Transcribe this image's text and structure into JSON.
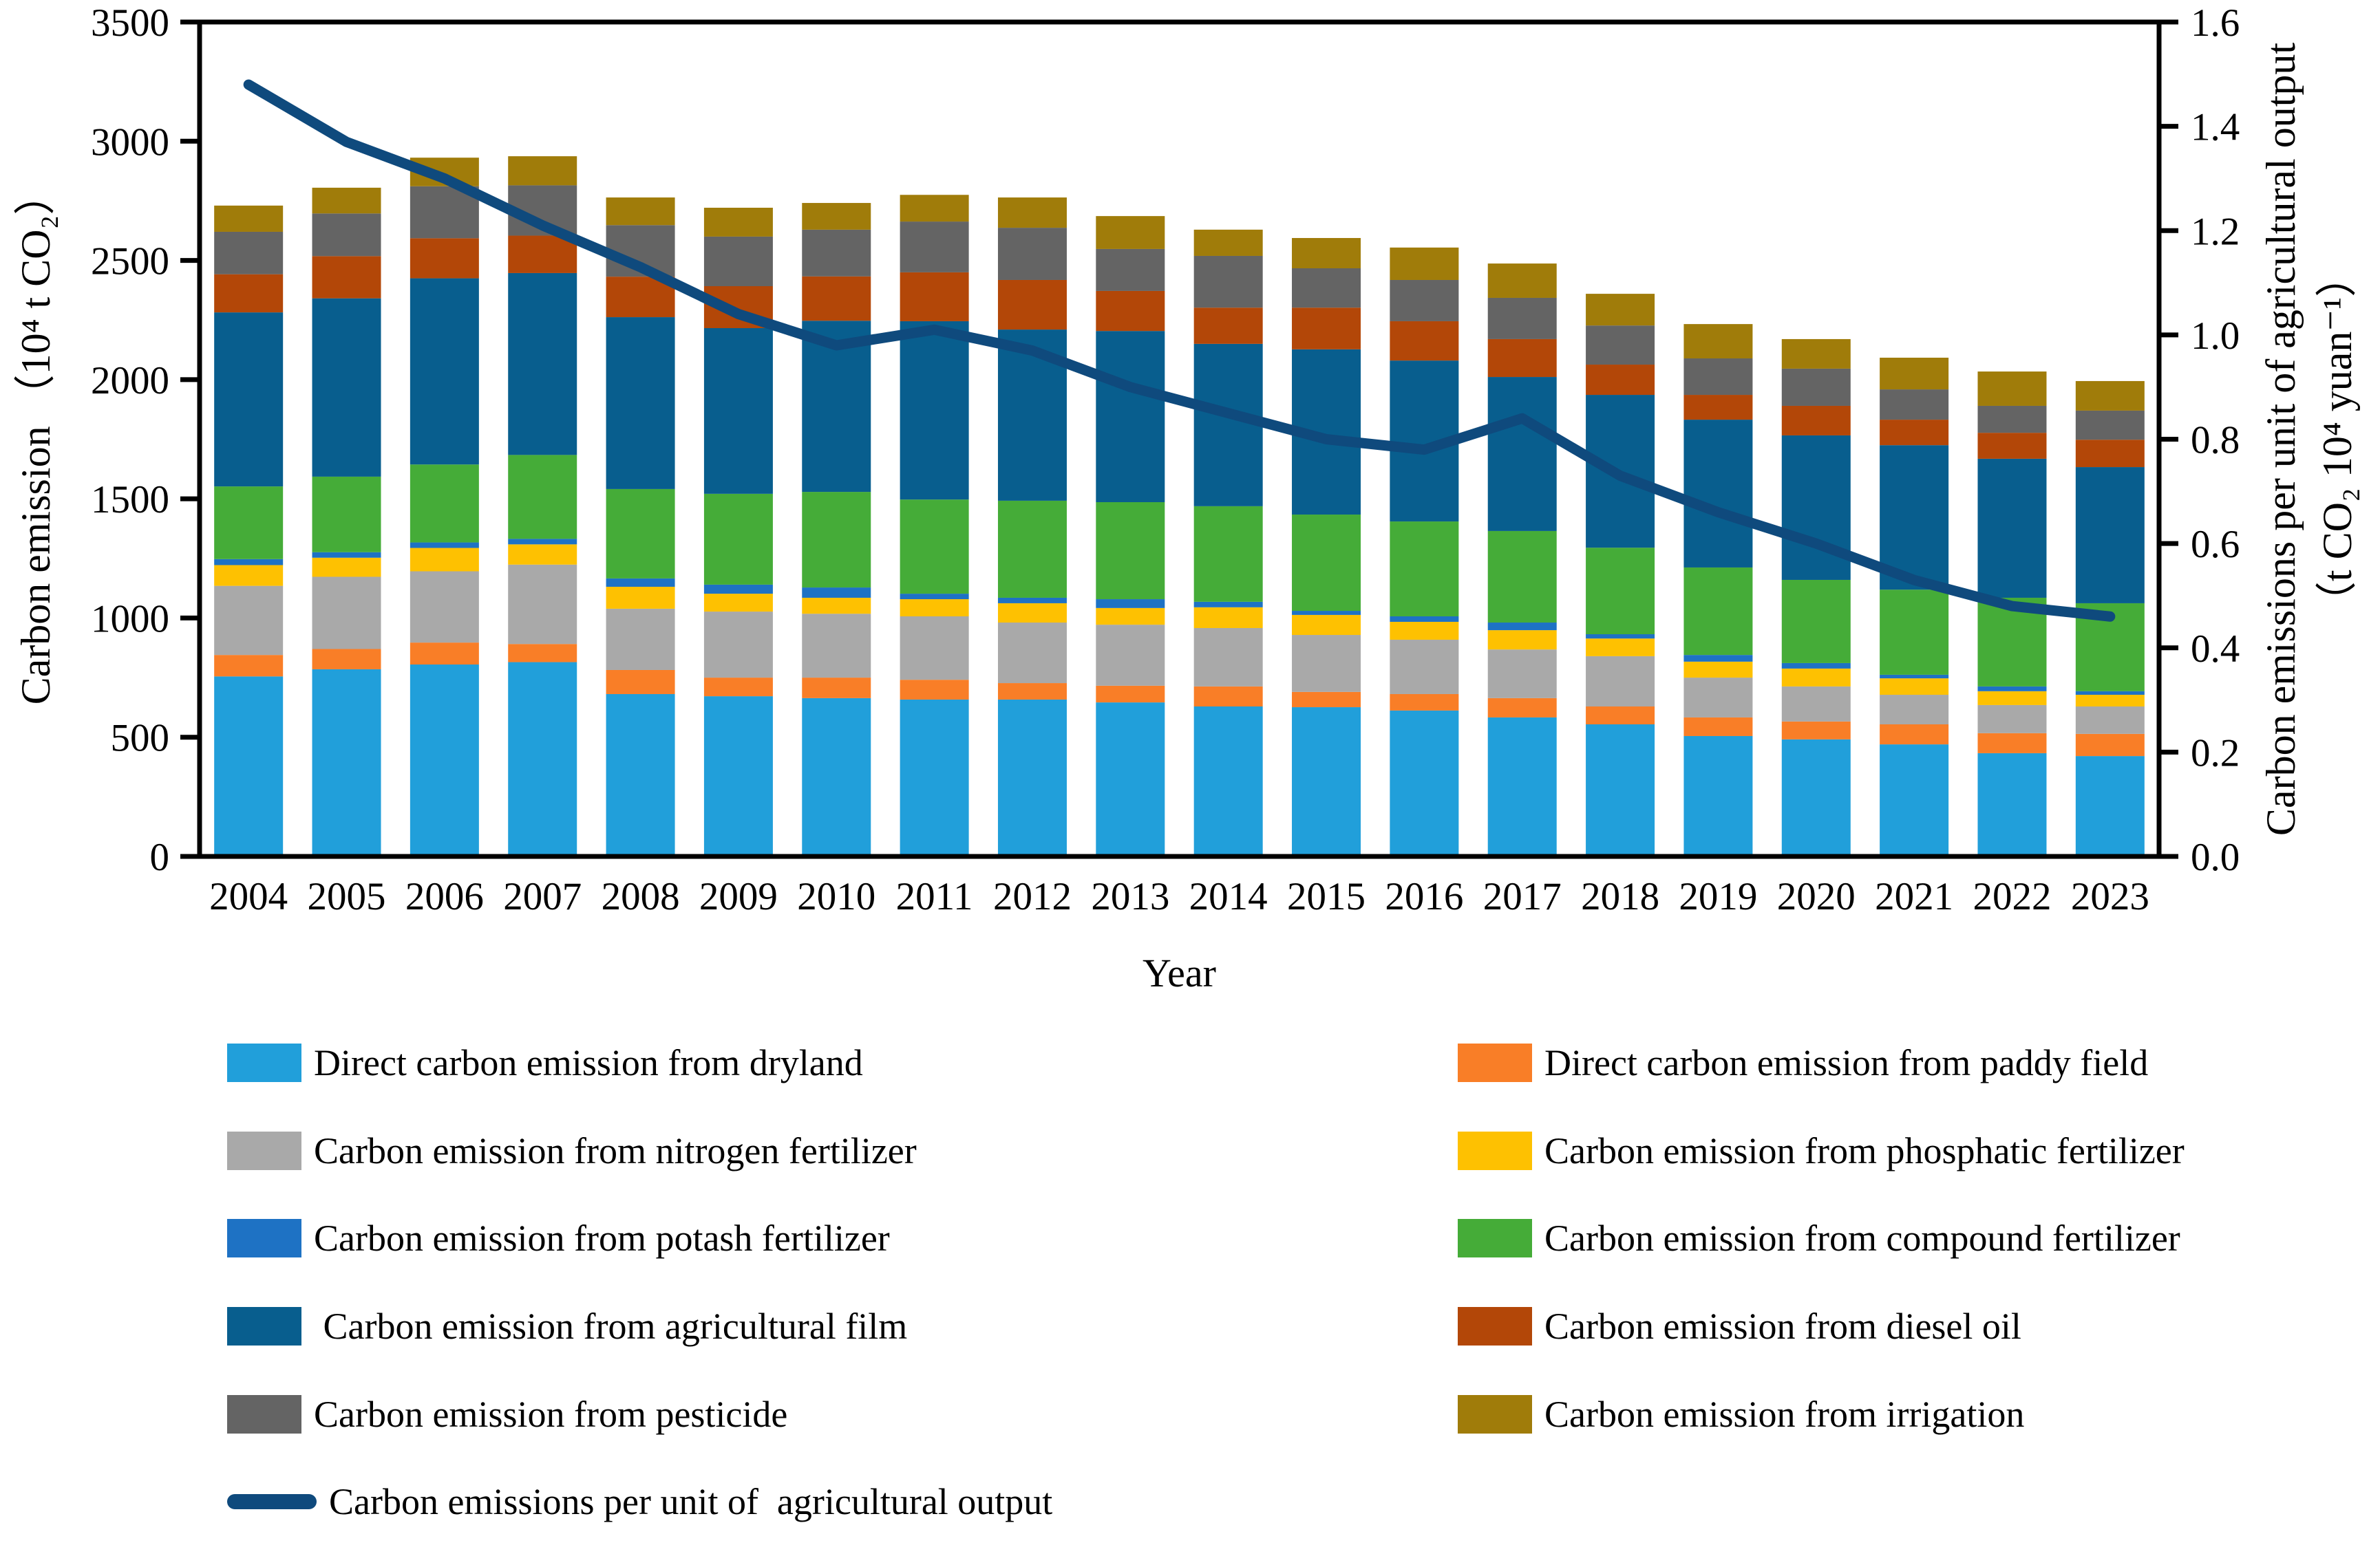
{
  "figure": {
    "left_axis": {
      "title": "Carbon emission （10⁴ t CO₂）",
      "ticks": [
        0,
        500,
        1000,
        1500,
        2000,
        2500,
        3000,
        3500
      ]
    },
    "right_axis": {
      "title_main": "Carbon emissions per unit of agricultural output",
      "title_unit": "（t CO₂ 10⁴ yuan⁻¹）",
      "ticks": [
        "0.0",
        "0.2",
        "0.4",
        "0.6",
        "0.8",
        "1.0",
        "1.2",
        "1.4",
        "1.6"
      ]
    },
    "x_axis": {
      "title": "Year"
    }
  },
  "chart_data": {
    "type": "stacked-bar+line",
    "title": "",
    "xlabel": "Year",
    "ylabel_left": "Carbon emission （10⁴ t CO₂）",
    "ylabel_right": "Carbon emissions per unit of agricultural output （t CO₂ 10⁴ yuan⁻¹）",
    "left_ylim": [
      0,
      3500
    ],
    "right_ylim": [
      0,
      1.6
    ],
    "grid": false,
    "legend_position": "bottom",
    "categories": [
      "2004",
      "2005",
      "2006",
      "2007",
      "2008",
      "2009",
      "2010",
      "2011",
      "2012",
      "2013",
      "2014",
      "2015",
      "2016",
      "2017",
      "2018",
      "2019",
      "2020",
      "2021",
      "2022",
      "2023"
    ],
    "series": [
      {
        "id": "dryland",
        "name": "Direct carbon emission from dryland",
        "color": "#219FDA",
        "values": [
          755,
          785,
          805,
          815,
          681,
          672,
          664,
          658,
          658,
          646,
          629,
          626,
          612,
          583,
          554,
          505,
          491,
          470,
          433,
          421
        ]
      },
      {
        "id": "paddy-field",
        "name": "Direct carbon emission from paddy field",
        "color": "#F97E27",
        "values": [
          90,
          85,
          92,
          76,
          101,
          78,
          86,
          83,
          69,
          70,
          84,
          64,
          69,
          81,
          75,
          78,
          75,
          84,
          84,
          93
        ]
      },
      {
        "id": "nitrogen-fertilizer",
        "name": "Carbon emission from nitrogen fertilizer",
        "color": "#A9A9A9",
        "values": [
          290,
          303,
          299,
          333,
          257,
          277,
          268,
          266,
          254,
          256,
          245,
          239,
          228,
          204,
          211,
          167,
          147,
          124,
          118,
          115
        ]
      },
      {
        "id": "phosphatic-fertilizer",
        "name": "Carbon emission from phosphatic fertilizer",
        "color": "#FEC101",
        "values": [
          87,
          80,
          98,
          85,
          92,
          75,
          67,
          72,
          81,
          70,
          87,
          84,
          75,
          81,
          74,
          67,
          75,
          69,
          58,
          49
        ]
      },
      {
        "id": "potash-fertilizer",
        "name": "Carbon emission from potash fertilizer",
        "color": "#1E72C4",
        "values": [
          25,
          23,
          23,
          23,
          35,
          38,
          43,
          23,
          23,
          37,
          23,
          17,
          23,
          32,
          18,
          28,
          23,
          15,
          20,
          15
        ]
      },
      {
        "id": "compound-fertilizer",
        "name": "Carbon emission from compound fertilizer",
        "color": "#45AC38",
        "values": [
          305,
          317,
          327,
          352,
          375,
          381,
          401,
          395,
          407,
          407,
          401,
          404,
          398,
          384,
          363,
          367,
          349,
          357,
          372,
          369
        ]
      },
      {
        "id": "agricultural-film",
        "name": " Carbon emission from agricultural film",
        "color": "#085E8E",
        "values": [
          730,
          748,
          781,
          763,
          721,
          695,
          718,
          748,
          718,
          718,
          681,
          693,
          675,
          646,
          641,
          620,
          606,
          606,
          583,
          571
        ]
      },
      {
        "id": "diesel-oil",
        "name": "Carbon emission from diesel oil",
        "color": "#B34708",
        "values": [
          160,
          177,
          168,
          157,
          170,
          176,
          186,
          205,
          208,
          168,
          152,
          175,
          165,
          159,
          127,
          104,
          124,
          107,
          109,
          115
        ]
      },
      {
        "id": "pesticide",
        "name": "Carbon emission from pesticide",
        "color": "#646464",
        "values": [
          178,
          179,
          218,
          211,
          216,
          208,
          196,
          213,
          219,
          176,
          217,
          165,
          173,
          173,
          164,
          153,
          156,
          127,
          113,
          122
        ]
      },
      {
        "id": "irrigation",
        "name": "Carbon emission from irrigation",
        "color": "#A07C0A",
        "values": [
          110,
          108,
          120,
          122,
          116,
          121,
          112,
          112,
          127,
          138,
          110,
          127,
          136,
          144,
          133,
          144,
          124,
          133,
          144,
          124
        ]
      }
    ],
    "line": {
      "id": "intensity",
      "name": "Carbon emissions per unit of  agricultural output",
      "color": "#0F4A7D",
      "axis": "right",
      "values": [
        1.48,
        1.37,
        1.3,
        1.21,
        1.13,
        1.04,
        0.98,
        1.01,
        0.97,
        0.9,
        0.85,
        0.8,
        0.78,
        0.84,
        0.73,
        0.66,
        0.6,
        0.53,
        0.48,
        0.46
      ]
    }
  }
}
